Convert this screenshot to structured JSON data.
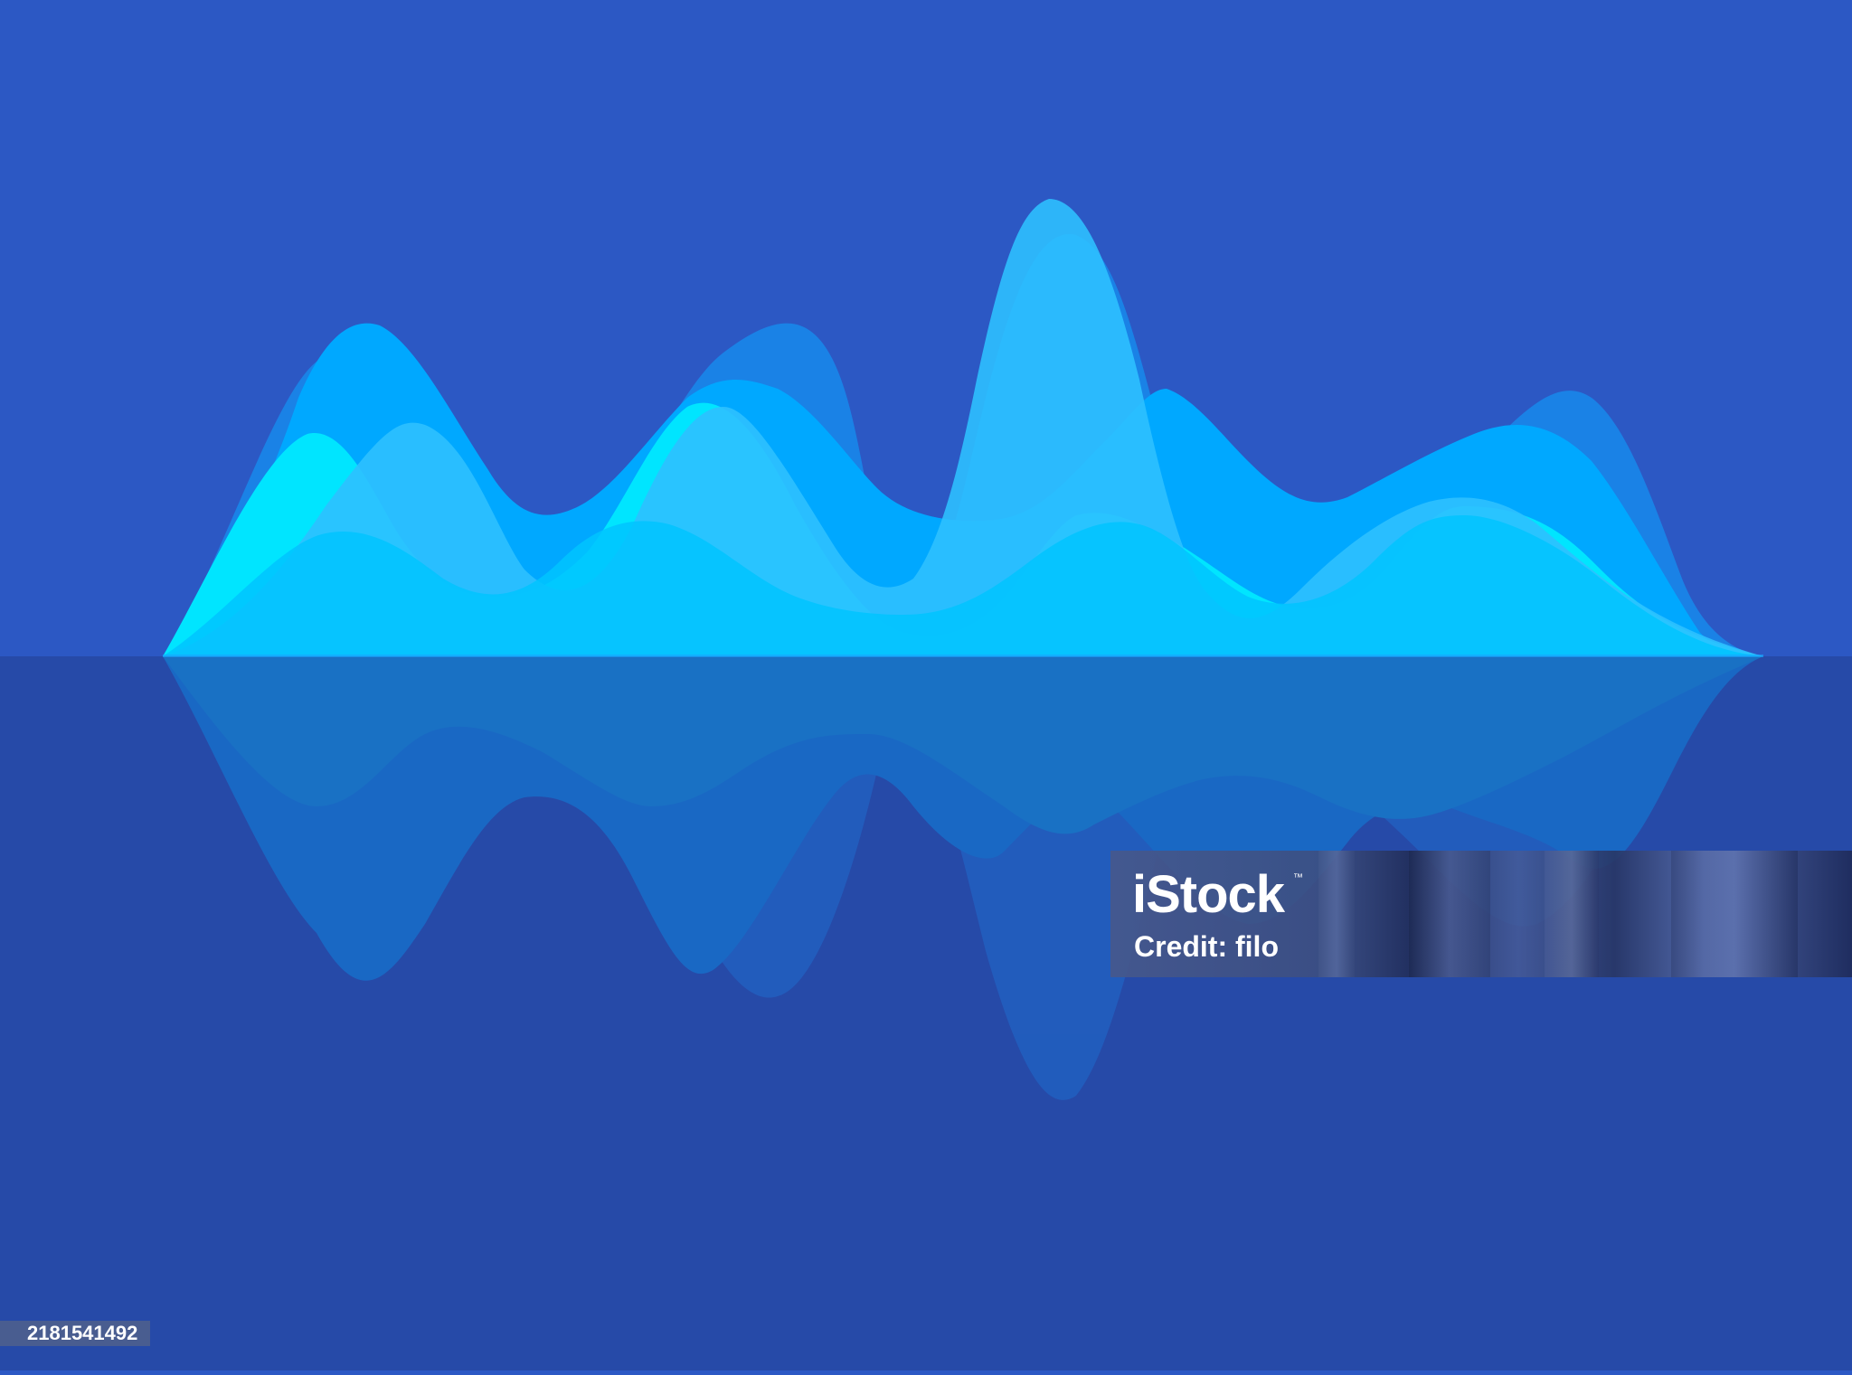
{
  "scene": {
    "colors": {
      "sky": "#2c58c4",
      "floor": "#264aa8",
      "wave_cyan": "#00e5ff",
      "wave_light_blue": "#2ec0ff",
      "wave_azure": "#00a8ff",
      "wave_mid_blue": "#1a82e6",
      "wave_base": "#00c4ff"
    },
    "shapes": [
      "sound-wave-back",
      "sound-wave-azure",
      "sound-wave-cyan",
      "sound-wave-light",
      "sound-wave-base",
      "sound-wave-reflection"
    ]
  },
  "watermark": {
    "brand": "iStock",
    "trademark": "™",
    "credit": "Credit: filo"
  },
  "image_id": "2181541492"
}
